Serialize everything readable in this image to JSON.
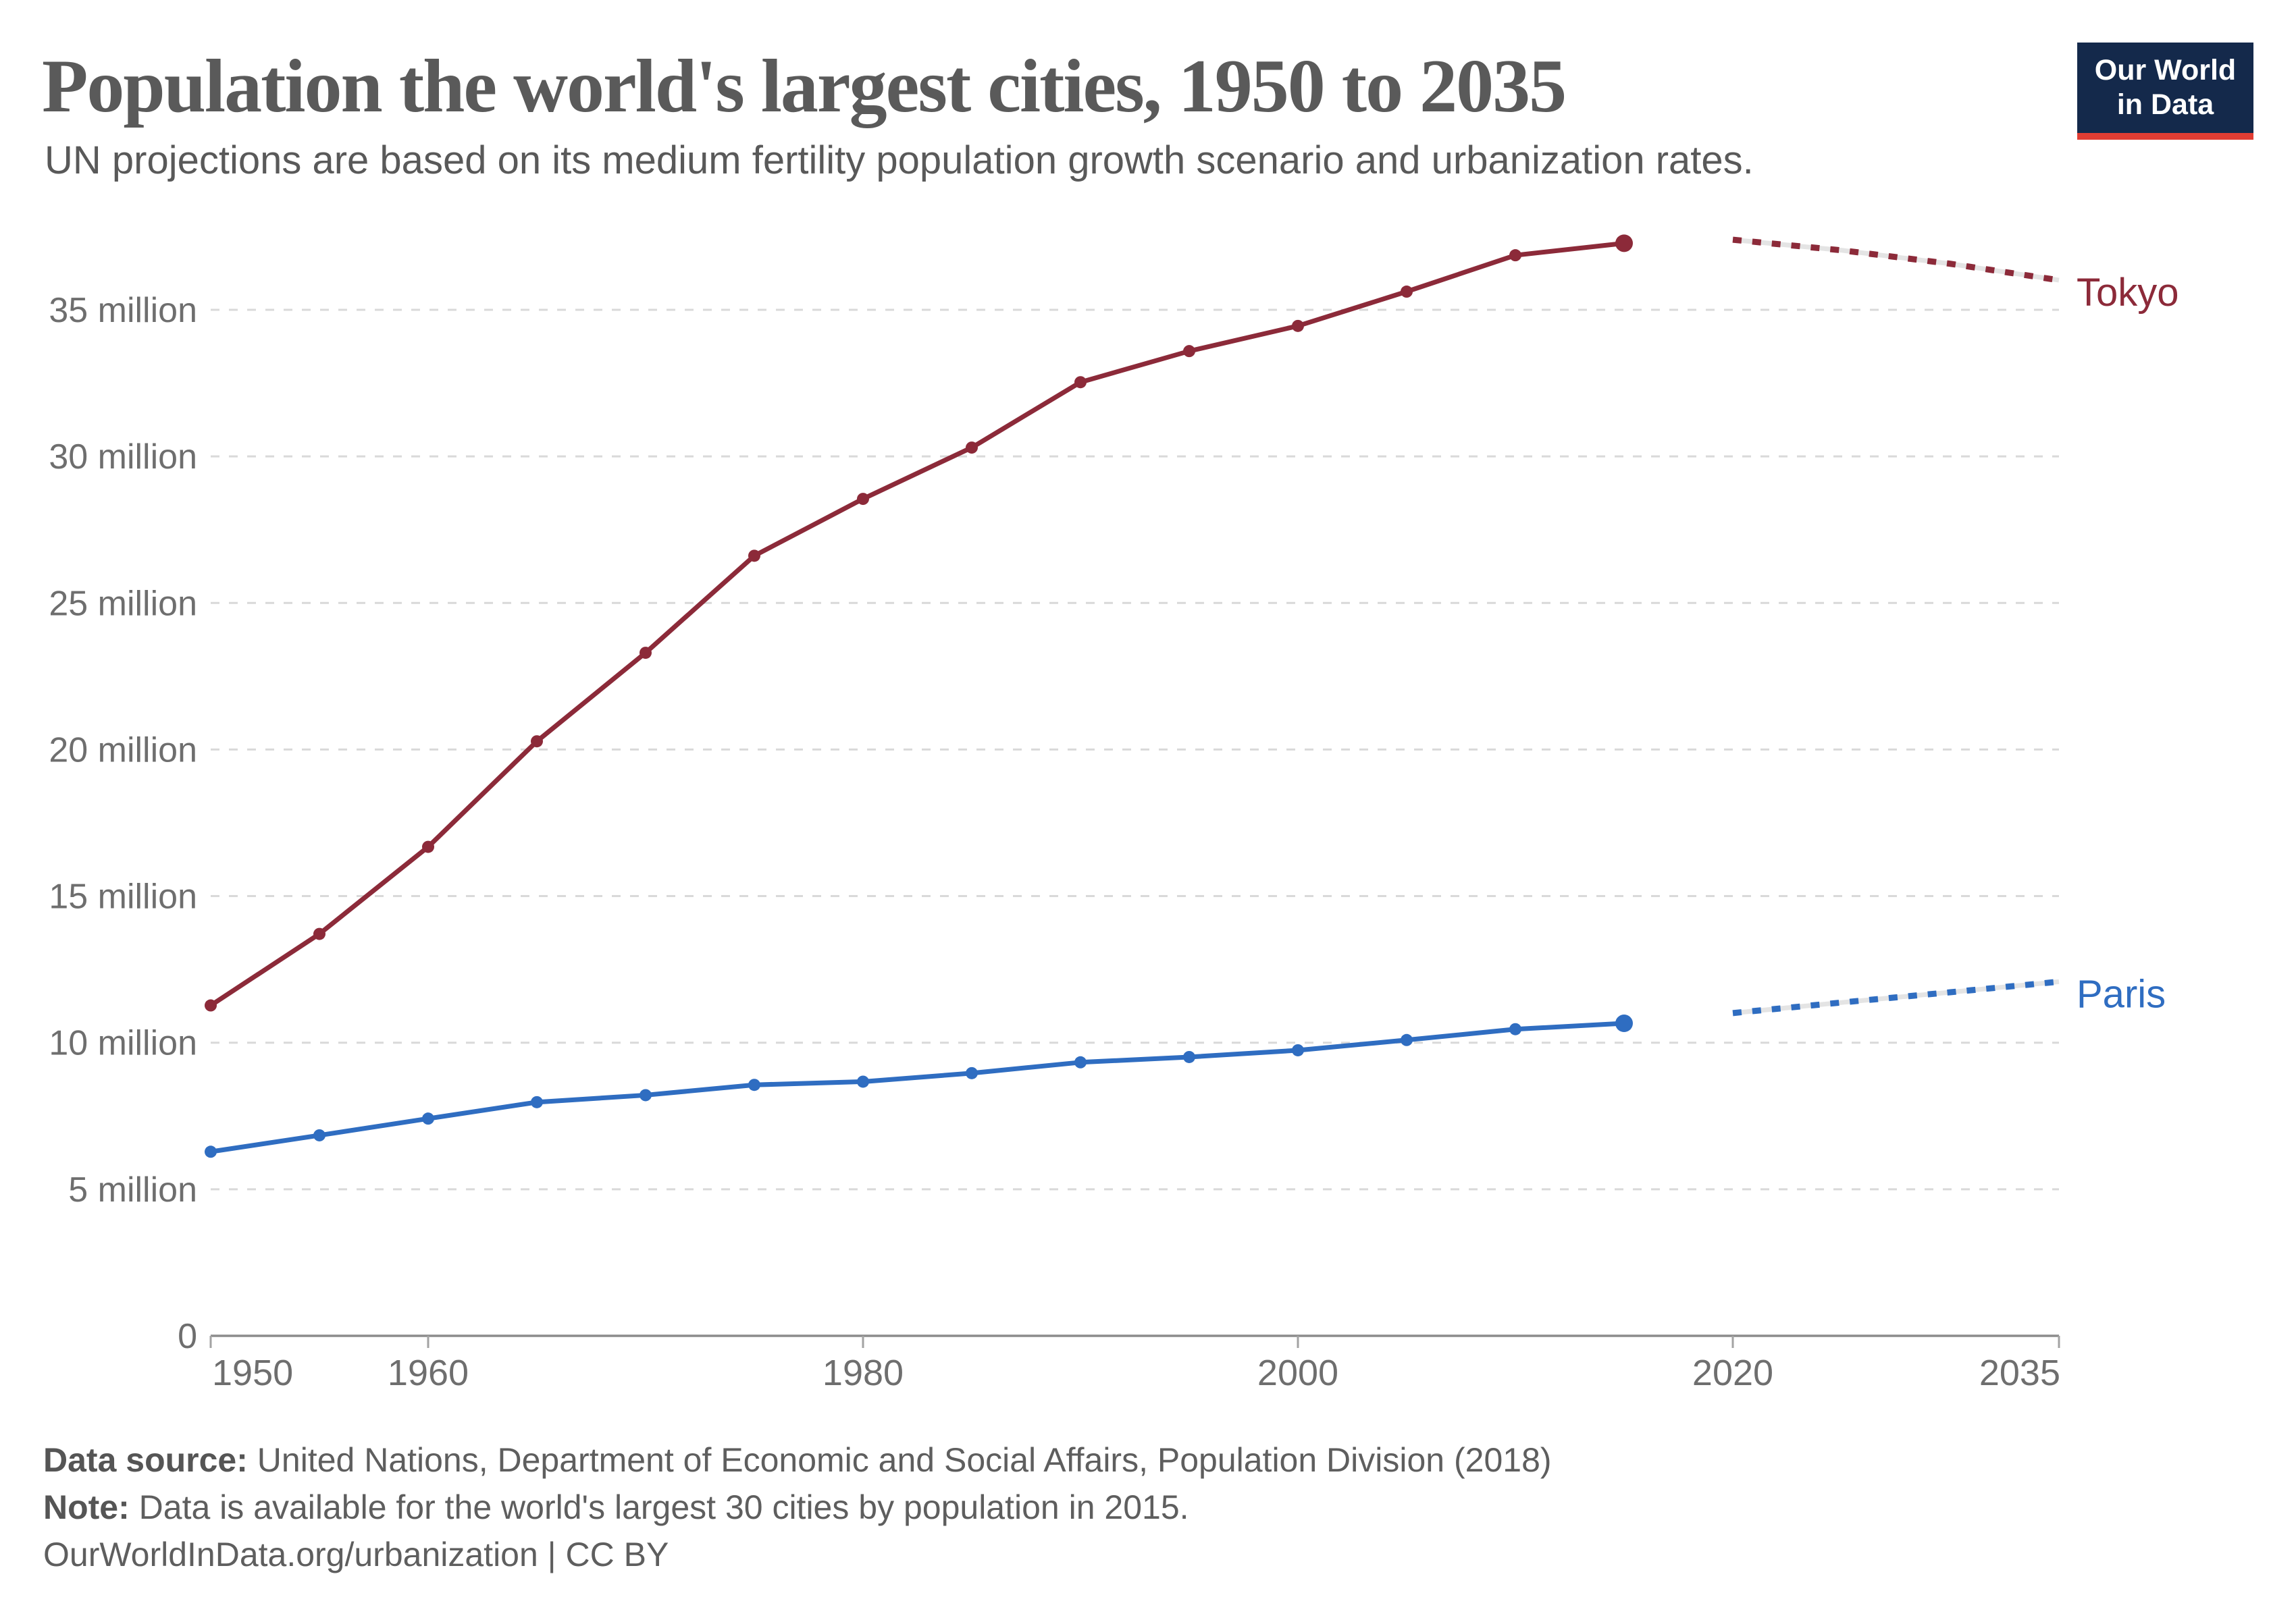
{
  "header": {
    "title": "Population the world's largest cities, 1950 to 2035",
    "subtitle": "UN projections are based on its medium fertility population growth scenario and urbanization rates.",
    "logo": {
      "line1": "Our World",
      "line2": "in Data",
      "bg_color": "#14294B",
      "bar_color": "#E13D33"
    }
  },
  "footer": {
    "source_label": "Data source:",
    "source_text": " United Nations, Department of Economic and Social Affairs, Population Division (2018)",
    "note_label": "Note:",
    "note_text": " Data is available for the world's largest 30 cities by population in 2015.",
    "license_text": "OurWorldInData.org/urbanization | CC BY"
  },
  "chart_data": {
    "type": "line",
    "title": "Population the world's largest cities, 1950 to 2035",
    "xlabel": "",
    "ylabel": "",
    "xlim": [
      1950,
      2035
    ],
    "ylim": [
      0,
      37.5
    ],
    "grid": "horizontal dashed gridlines at 5-million intervals",
    "legend": "series labels at right end of lines",
    "observed_years": [
      1950,
      1955,
      1960,
      1965,
      1970,
      1975,
      1980,
      1985,
      1990,
      1995,
      2000,
      2005,
      2010,
      2015
    ],
    "projection_years": [
      2020,
      2025,
      2030,
      2035
    ],
    "series": [
      {
        "name": "Tokyo",
        "color": "#8C2A39",
        "values": [
          11.27,
          13.71,
          16.68,
          20.28,
          23.3,
          26.61,
          28.55,
          30.3,
          32.53,
          33.59,
          34.45,
          35.62,
          36.86,
          37.27
        ],
        "projection": [
          37.39,
          37.03,
          36.57,
          36.01
        ]
      },
      {
        "name": "Paris",
        "color": "#2F6DC1",
        "values": [
          6.28,
          6.84,
          7.41,
          7.97,
          8.21,
          8.56,
          8.67,
          8.96,
          9.33,
          9.51,
          9.74,
          10.09,
          10.46,
          10.66
        ],
        "projection": [
          11.01,
          11.37,
          11.72,
          12.08
        ]
      }
    ],
    "y_ticks": [
      {
        "value": 0,
        "label": "0"
      },
      {
        "value": 5,
        "label": "5 million"
      },
      {
        "value": 10,
        "label": "10 million"
      },
      {
        "value": 15,
        "label": "15 million"
      },
      {
        "value": 20,
        "label": "20 million"
      },
      {
        "value": 25,
        "label": "25 million"
      },
      {
        "value": 30,
        "label": "30 million"
      },
      {
        "value": 35,
        "label": "35 million"
      }
    ],
    "x_ticks": [
      {
        "year": 1950,
        "label": "1950",
        "align": "start"
      },
      {
        "year": 1960,
        "label": "1960",
        "align": "middle"
      },
      {
        "year": 1980,
        "label": "1980",
        "align": "middle"
      },
      {
        "year": 2000,
        "label": "2000",
        "align": "middle"
      },
      {
        "year": 2020,
        "label": "2020",
        "align": "middle"
      },
      {
        "year": 2035,
        "label": "2035",
        "align": "end"
      }
    ],
    "gridline_color": "#D9D9D9",
    "axis_color": "#8C8C8C",
    "tick_mark_color": "#A3A3A3",
    "tick_label_color": "#6E6E6E",
    "projection_underlay_color": "#E4E4E4"
  }
}
